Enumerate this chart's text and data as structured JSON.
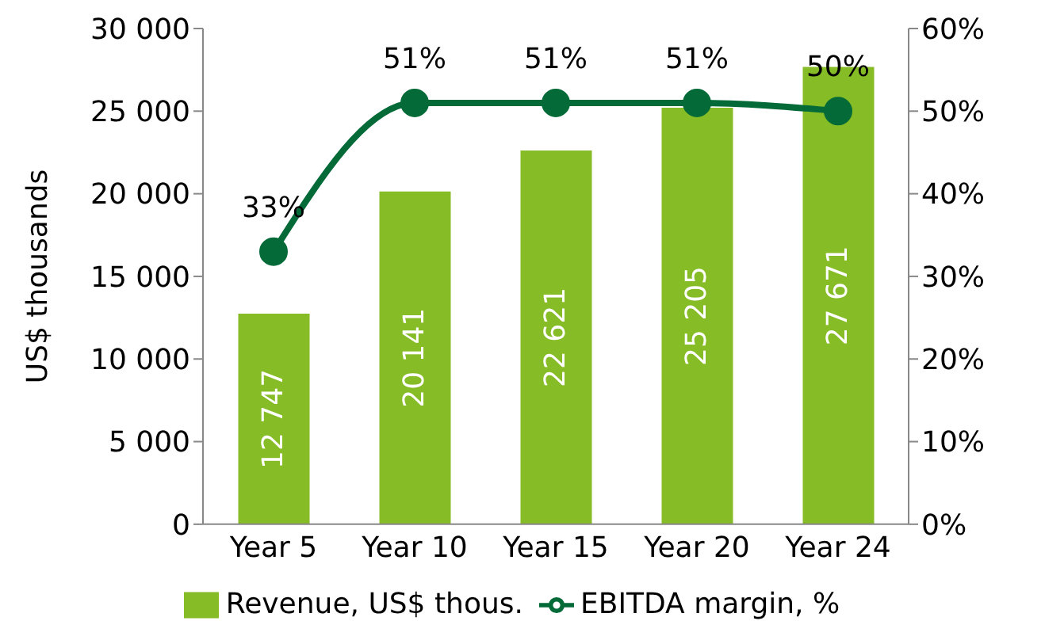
{
  "chart_data": {
    "type": "bar",
    "ylabel": "US$ thousands",
    "categories": [
      "Year 5",
      "Year 10",
      "Year 15",
      "Year 20",
      "Year 24"
    ],
    "series": [
      {
        "name": "Revenue, US$ thous.",
        "color": "#86bc25",
        "values": [
          12747,
          20141,
          22621,
          25205,
          27671
        ],
        "value_labels": [
          "12 747",
          "20 141",
          "22 621",
          "25 205",
          "27 671"
        ]
      },
      {
        "name": "EBITDA margin, %",
        "type": "line",
        "axis": "y2",
        "color": "#046a38",
        "values": [
          33,
          51,
          51,
          51,
          50
        ],
        "value_labels": [
          "33%",
          "51%",
          "51%",
          "51%",
          "50%"
        ]
      }
    ],
    "ylim": [
      0,
      30000
    ],
    "yticks": [
      {
        "value": 0,
        "label": "0"
      },
      {
        "value": 5000,
        "label": "5 000"
      },
      {
        "value": 10000,
        "label": "10 000"
      },
      {
        "value": 15000,
        "label": "15 000"
      },
      {
        "value": 20000,
        "label": "20 000"
      },
      {
        "value": 25000,
        "label": "25 000"
      },
      {
        "value": 30000,
        "label": "30 000"
      }
    ],
    "y2lim": [
      0,
      60
    ],
    "y2ticks": [
      {
        "value": 0,
        "label": "0%"
      },
      {
        "value": 10,
        "label": "10%"
      },
      {
        "value": 20,
        "label": "20%"
      },
      {
        "value": 30,
        "label": "30%"
      },
      {
        "value": 40,
        "label": "40%"
      },
      {
        "value": 50,
        "label": "50%"
      },
      {
        "value": 60,
        "label": "60%"
      }
    ],
    "grid": false,
    "legend": "bottom",
    "marker": "circle",
    "line_style": "solid"
  }
}
